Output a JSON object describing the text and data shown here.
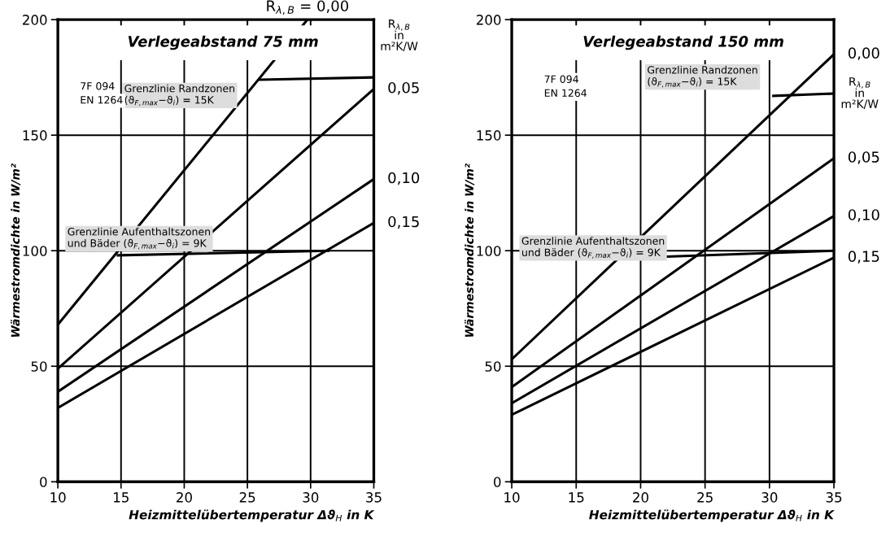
{
  "chart_data": [
    {
      "type": "line",
      "title": "Verlegeabstand 75 mm",
      "xlabel": "Heizmittelübertemperatur Δϑ$_{H}$ in K",
      "ylabel": "Wärmestromdichte in W/m²",
      "legend_title": "R$_{λ,B}$ in m²K/W",
      "xlim": [
        10,
        35
      ],
      "ylim": [
        0,
        200
      ],
      "xticks": [
        10,
        15,
        20,
        25,
        30,
        35
      ],
      "yticks": [
        0,
        50,
        100,
        150,
        200
      ],
      "grid": true,
      "marker": "none",
      "line_style": "solid",
      "annotations": [
        "Grenzlinie Randzonen (ϑ$_{F,max}$−ϑ$_{i}$) = 15K",
        "Grenzlinie Aufenthaltszonen und Bäder (ϑ$_{F,max}$−ϑ$_{i}$) = 9K",
        "7F 094",
        "EN 1264"
      ],
      "series": [
        {
          "name": "R$_{λ,B}$ = 0,00",
          "color": "#000000",
          "x": [
            10,
            29.75
          ],
          "values": [
            68,
            200
          ]
        },
        {
          "name": "0,05",
          "color": "#000000",
          "x": [
            10,
            35
          ],
          "values": [
            49,
            170
          ]
        },
        {
          "name": "0,10",
          "color": "#000000",
          "x": [
            10,
            35
          ],
          "values": [
            39,
            131
          ]
        },
        {
          "name": "0,15",
          "color": "#000000",
          "x": [
            10,
            35
          ],
          "values": [
            32,
            112
          ]
        },
        {
          "color": "#000000",
          "x": [
            14.75,
            31.4
          ],
          "values": [
            98,
            100
          ]
        },
        {
          "color": "#000000",
          "x": [
            26,
            35
          ],
          "values": [
            174,
            175
          ]
        }
      ]
    },
    {
      "type": "line",
      "title": "Verlegeabstand 150 mm",
      "xlabel": "Heizmittelübertemperatur Δϑ$_{H}$ in K",
      "ylabel": "Wärmestromdichte in W/m²",
      "legend_title": "R$_{λ,B}$ in m²K/W",
      "xlim": [
        10,
        35
      ],
      "ylim": [
        0,
        200
      ],
      "xticks": [
        10,
        15,
        20,
        25,
        30,
        35
      ],
      "yticks": [
        0,
        50,
        100,
        150,
        200
      ],
      "grid": true,
      "marker": "none",
      "line_style": "solid",
      "annotations": [
        "Grenzlinie Randzonen (ϑ$_{F,max}$−ϑ$_{i}$) = 15K",
        "Grenzlinie Aufenthaltszonen und Bäder (ϑ$_{F,max}$−ϑ$_{i}$) = 9K",
        "7F 094",
        "EN 1264"
      ],
      "series": [
        {
          "name": "0,00",
          "color": "#000000",
          "x": [
            10,
            35
          ],
          "values": [
            53,
            185
          ]
        },
        {
          "name": "0,05",
          "color": "#000000",
          "x": [
            10,
            35
          ],
          "values": [
            41,
            140
          ]
        },
        {
          "name": "0,10",
          "color": "#000000",
          "x": [
            10,
            35
          ],
          "values": [
            34,
            115
          ]
        },
        {
          "name": "0,15",
          "color": "#000000",
          "x": [
            10,
            35
          ],
          "values": [
            29,
            97
          ]
        },
        {
          "color": "#000000",
          "x": [
            17.2,
            35
          ],
          "values": [
            96.5,
            100
          ]
        },
        {
          "color": "#000000",
          "x": [
            30.3,
            35
          ],
          "values": [
            167,
            168
          ]
        }
      ]
    }
  ]
}
